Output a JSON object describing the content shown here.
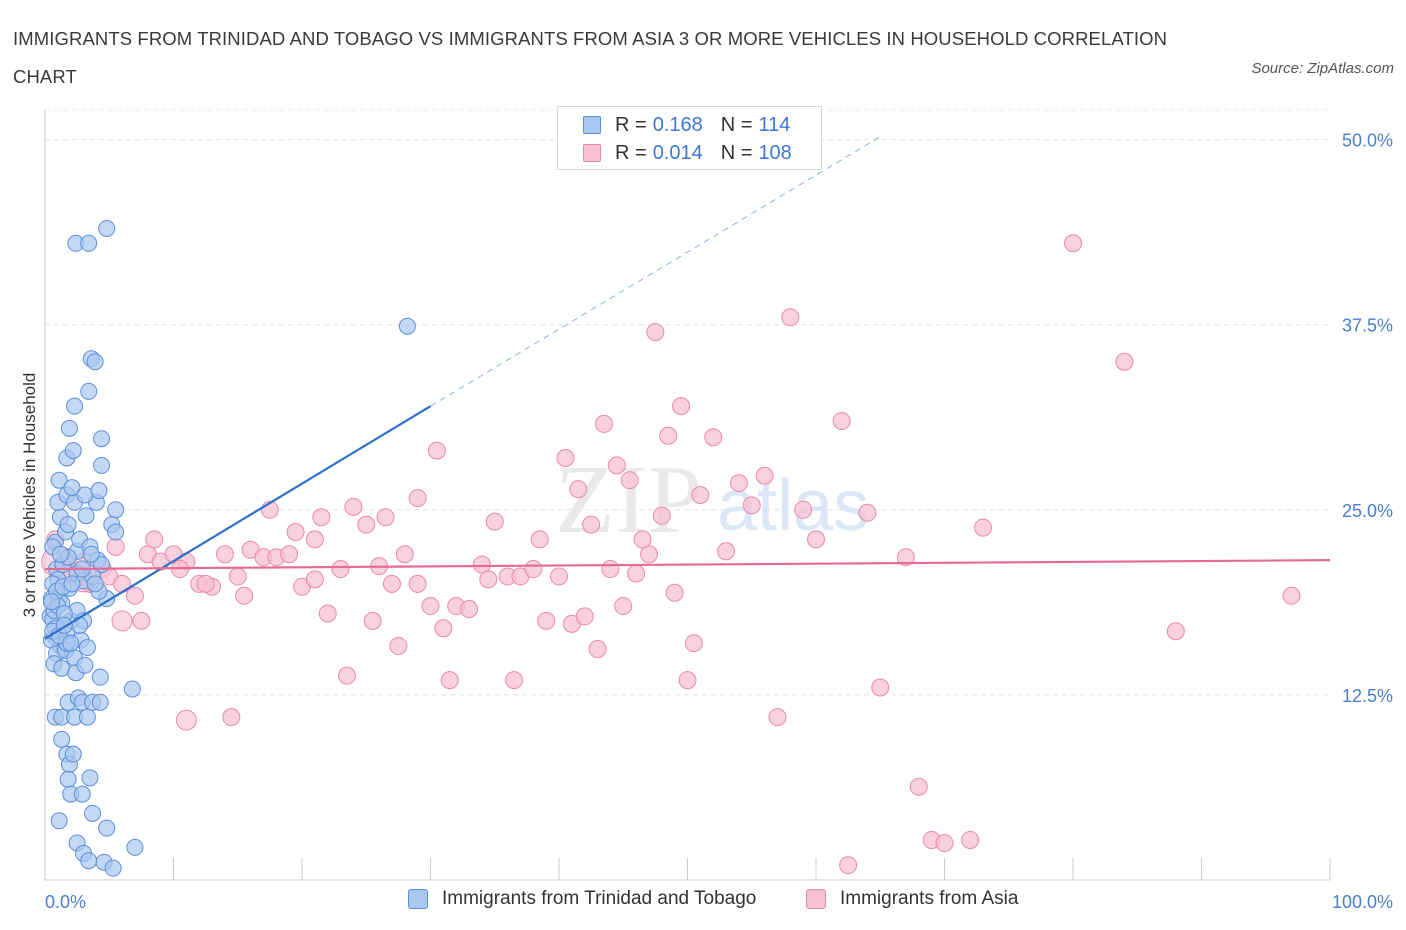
{
  "header": {
    "title": "IMMIGRANTS FROM TRINIDAD AND TOBAGO VS IMMIGRANTS FROM ASIA 3 OR MORE VEHICLES IN HOUSEHOLD CORRELATION CHART",
    "source": "Source: ZipAtlas.com"
  },
  "watermark": {
    "zip": "ZIP",
    "atlas": "atlas"
  },
  "legend": {
    "r_label": "R =",
    "n_label": "N =",
    "series": [
      {
        "r": "0.168",
        "n": "114",
        "color": "#5b9bd5"
      },
      {
        "r": "0.014",
        "n": "108",
        "color": "#f4a6c0"
      }
    ]
  },
  "colors": {
    "blue_fill": "#a9c8f0",
    "blue_stroke": "#5b8fd8",
    "blue_line": "#2d6fcc",
    "pink_fill": "#f7c0d2",
    "pink_stroke": "#e98aab",
    "pink_line": "#e56b95",
    "tick_label": "#4a7fd0",
    "grid": "#e3e3e3"
  },
  "chart_data": {
    "type": "scatter",
    "title": "IMMIGRANTS FROM TRINIDAD AND TOBAGO VS IMMIGRANTS FROM ASIA 3 OR MORE VEHICLES IN HOUSEHOLD CORRELATION CHART",
    "xlabel": "",
    "ylabel": "3 or more Vehicles in Household",
    "xlim": [
      0,
      100
    ],
    "ylim": [
      0,
      52
    ],
    "x_tick_labels": [
      "0.0%",
      "100.0%"
    ],
    "y_ticks": [
      12.5,
      25.0,
      37.5,
      50.0
    ],
    "y_tick_labels": [
      "12.5%",
      "25.0%",
      "37.5%",
      "50.0%"
    ],
    "grid": true,
    "legend_position": "top-center",
    "series": [
      {
        "name": "Immigrants from Trinidad and Tobago",
        "r": 0.168,
        "n": 114,
        "trend": {
          "x": [
            0,
            30
          ],
          "y": [
            16.3,
            32.0
          ],
          "dashed_to": [
            65,
            50.2
          ]
        },
        "points": [
          [
            0.4,
            17.8
          ],
          [
            0.5,
            19.0
          ],
          [
            0.6,
            17.6
          ],
          [
            0.7,
            18.2
          ],
          [
            0.8,
            16.4
          ],
          [
            0.9,
            21.0
          ],
          [
            1.0,
            20.3
          ],
          [
            1.1,
            19.0
          ],
          [
            1.2,
            15.8
          ],
          [
            1.3,
            18.7
          ],
          [
            0.5,
            16.2
          ],
          [
            0.8,
            17.0
          ],
          [
            1.5,
            15.6
          ],
          [
            1.7,
            16.8
          ],
          [
            2.0,
            17.5
          ],
          [
            0.6,
            20.0
          ],
          [
            1.4,
            21.3
          ],
          [
            1.9,
            19.7
          ],
          [
            2.5,
            18.2
          ],
          [
            3.0,
            17.5
          ],
          [
            0.9,
            15.3
          ],
          [
            1.6,
            15.5
          ],
          [
            2.3,
            15.0
          ],
          [
            0.7,
            14.6
          ],
          [
            1.3,
            14.3
          ],
          [
            2.8,
            16.2
          ],
          [
            3.3,
            15.7
          ],
          [
            0.8,
            22.8
          ],
          [
            1.6,
            23.5
          ],
          [
            2.5,
            22.2
          ],
          [
            1.2,
            24.5
          ],
          [
            1.8,
            24.0
          ],
          [
            2.7,
            23.0
          ],
          [
            3.5,
            22.5
          ],
          [
            1.0,
            25.5
          ],
          [
            1.7,
            26.0
          ],
          [
            2.3,
            25.5
          ],
          [
            3.2,
            24.6
          ],
          [
            4.0,
            25.5
          ],
          [
            1.1,
            27.0
          ],
          [
            2.1,
            26.5
          ],
          [
            3.1,
            26.0
          ],
          [
            4.2,
            26.3
          ],
          [
            5.5,
            25.0
          ],
          [
            1.7,
            28.5
          ],
          [
            2.2,
            29.0
          ],
          [
            1.9,
            30.5
          ],
          [
            2.3,
            32.0
          ],
          [
            3.4,
            33.0
          ],
          [
            3.6,
            35.2
          ],
          [
            3.9,
            35.0
          ],
          [
            4.4,
            29.8
          ],
          [
            4.4,
            28.0
          ],
          [
            2.4,
            43.0
          ],
          [
            3.4,
            43.0
          ],
          [
            4.8,
            44.0
          ],
          [
            28.2,
            37.4
          ],
          [
            4.1,
            21.6
          ],
          [
            4.4,
            21.3
          ],
          [
            5.2,
            24.0
          ],
          [
            5.5,
            23.5
          ],
          [
            3.6,
            22.0
          ],
          [
            4.8,
            19.0
          ],
          [
            0.8,
            11.0
          ],
          [
            1.3,
            11.0
          ],
          [
            1.8,
            12.0
          ],
          [
            2.3,
            11.0
          ],
          [
            2.6,
            12.3
          ],
          [
            2.9,
            12.0
          ],
          [
            3.3,
            11.0
          ],
          [
            3.7,
            12.0
          ],
          [
            4.3,
            12.0
          ],
          [
            1.3,
            9.5
          ],
          [
            1.7,
            8.5
          ],
          [
            1.9,
            7.8
          ],
          [
            2.2,
            8.5
          ],
          [
            1.8,
            6.8
          ],
          [
            2.0,
            5.8
          ],
          [
            2.9,
            5.8
          ],
          [
            3.5,
            6.9
          ],
          [
            1.1,
            4.0
          ],
          [
            3.7,
            4.5
          ],
          [
            4.8,
            3.5
          ],
          [
            2.5,
            2.5
          ],
          [
            3.0,
            1.8
          ],
          [
            3.4,
            1.3
          ],
          [
            4.6,
            1.2
          ],
          [
            5.3,
            0.8
          ],
          [
            7.0,
            2.2
          ],
          [
            6.8,
            12.9
          ],
          [
            2.5,
            20.7
          ],
          [
            3.0,
            20.2
          ],
          [
            3.7,
            20.5
          ],
          [
            4.2,
            19.5
          ],
          [
            1.7,
            16.0
          ],
          [
            2.4,
            14.0
          ],
          [
            3.1,
            14.5
          ],
          [
            4.3,
            13.7
          ],
          [
            1.0,
            18.5
          ],
          [
            1.5,
            18.0
          ],
          [
            0.6,
            16.8
          ],
          [
            1.1,
            16.5
          ],
          [
            2.0,
            16.0
          ],
          [
            2.7,
            17.2
          ],
          [
            0.9,
            19.5
          ],
          [
            1.4,
            19.8
          ],
          [
            0.5,
            18.8
          ],
          [
            1.8,
            21.8
          ],
          [
            2.9,
            21.0
          ],
          [
            3.9,
            20.0
          ],
          [
            0.6,
            22.5
          ],
          [
            1.2,
            22.0
          ],
          [
            2.1,
            20.0
          ],
          [
            1.5,
            17.2
          ]
        ]
      },
      {
        "name": "Immigrants from Asia",
        "r": 0.014,
        "n": 108,
        "trend": {
          "x": [
            0,
            100
          ],
          "y": [
            21.0,
            21.6
          ]
        },
        "points": [
          [
            0.8,
            23.0
          ],
          [
            1.5,
            21.5
          ],
          [
            2.5,
            20.5
          ],
          [
            3.5,
            20.0
          ],
          [
            4.5,
            21.0
          ],
          [
            5.0,
            20.5
          ],
          [
            6.0,
            20.0
          ],
          [
            7.0,
            19.2
          ],
          [
            8.0,
            22.0
          ],
          [
            9.0,
            21.5
          ],
          [
            10.0,
            22.0
          ],
          [
            11.0,
            21.5
          ],
          [
            12.0,
            20.0
          ],
          [
            13.0,
            19.8
          ],
          [
            14.0,
            22.0
          ],
          [
            15.0,
            20.5
          ],
          [
            16.0,
            22.3
          ],
          [
            17.0,
            21.8
          ],
          [
            18.0,
            21.8
          ],
          [
            19.0,
            22.0
          ],
          [
            20.0,
            19.8
          ],
          [
            21.0,
            20.3
          ],
          [
            22.0,
            18.0
          ],
          [
            23.0,
            21.0
          ],
          [
            24.0,
            25.2
          ],
          [
            25.0,
            24.0
          ],
          [
            27.0,
            20.0
          ],
          [
            28.0,
            22.0
          ],
          [
            29.0,
            20.0
          ],
          [
            30.0,
            18.5
          ],
          [
            31.0,
            17.0
          ],
          [
            32.0,
            18.5
          ],
          [
            33.0,
            18.3
          ],
          [
            34.0,
            21.3
          ],
          [
            35.0,
            24.2
          ],
          [
            36.0,
            20.5
          ],
          [
            37.0,
            20.5
          ],
          [
            38.0,
            21.0
          ],
          [
            39.0,
            17.5
          ],
          [
            40.0,
            20.5
          ],
          [
            41.0,
            17.3
          ],
          [
            42.0,
            17.8
          ],
          [
            43.0,
            15.6
          ],
          [
            44.0,
            21.0
          ],
          [
            45.0,
            18.5
          ],
          [
            46.0,
            20.7
          ],
          [
            47.0,
            22.0
          ],
          [
            48.0,
            24.6
          ],
          [
            49.0,
            19.4
          ],
          [
            50.0,
            13.5
          ],
          [
            3.0,
            21.5
          ],
          [
            5.5,
            22.5
          ],
          [
            7.5,
            17.5
          ],
          [
            8.5,
            23.0
          ],
          [
            10.5,
            21.0
          ],
          [
            12.5,
            20.0
          ],
          [
            15.5,
            19.2
          ],
          [
            17.5,
            25.0
          ],
          [
            19.5,
            23.5
          ],
          [
            21.5,
            24.5
          ],
          [
            23.5,
            13.8
          ],
          [
            25.5,
            17.5
          ],
          [
            26.5,
            24.5
          ],
          [
            27.5,
            15.8
          ],
          [
            29.0,
            25.8
          ],
          [
            31.5,
            13.5
          ],
          [
            34.5,
            20.3
          ],
          [
            36.5,
            13.5
          ],
          [
            38.5,
            23.0
          ],
          [
            40.5,
            28.5
          ],
          [
            41.5,
            26.4
          ],
          [
            42.5,
            24.0
          ],
          [
            43.5,
            30.8
          ],
          [
            44.5,
            28.0
          ],
          [
            45.5,
            27.0
          ],
          [
            46.5,
            23.0
          ],
          [
            47.5,
            37.0
          ],
          [
            48.5,
            30.0
          ],
          [
            49.5,
            32.0
          ],
          [
            50.5,
            16.0
          ],
          [
            51.0,
            26.0
          ],
          [
            52.0,
            29.9
          ],
          [
            53.0,
            22.2
          ],
          [
            54.0,
            26.8
          ],
          [
            55.0,
            25.3
          ],
          [
            56.0,
            27.3
          ],
          [
            57.0,
            11.0
          ],
          [
            58.0,
            38.0
          ],
          [
            59.0,
            25.0
          ],
          [
            60.0,
            23.0
          ],
          [
            62.0,
            31.0
          ],
          [
            64.0,
            24.8
          ],
          [
            65.0,
            13.0
          ],
          [
            67.0,
            21.8
          ],
          [
            68.0,
            6.3
          ],
          [
            69.0,
            2.7
          ],
          [
            70.0,
            2.5
          ],
          [
            72.0,
            2.7
          ],
          [
            73.0,
            23.8
          ],
          [
            80.0,
            43.0
          ],
          [
            84.0,
            35.0
          ],
          [
            88.0,
            16.8
          ],
          [
            97.0,
            19.2
          ],
          [
            30.5,
            29.0
          ],
          [
            14.5,
            11.0
          ],
          [
            21.0,
            23.0
          ],
          [
            62.5,
            1.0
          ],
          [
            26.0,
            21.2
          ]
        ]
      }
    ]
  },
  "bottom_legend": {
    "items": [
      {
        "label": "Immigrants from Trinidad and Tobago"
      },
      {
        "label": "Immigrants from Asia"
      }
    ]
  }
}
